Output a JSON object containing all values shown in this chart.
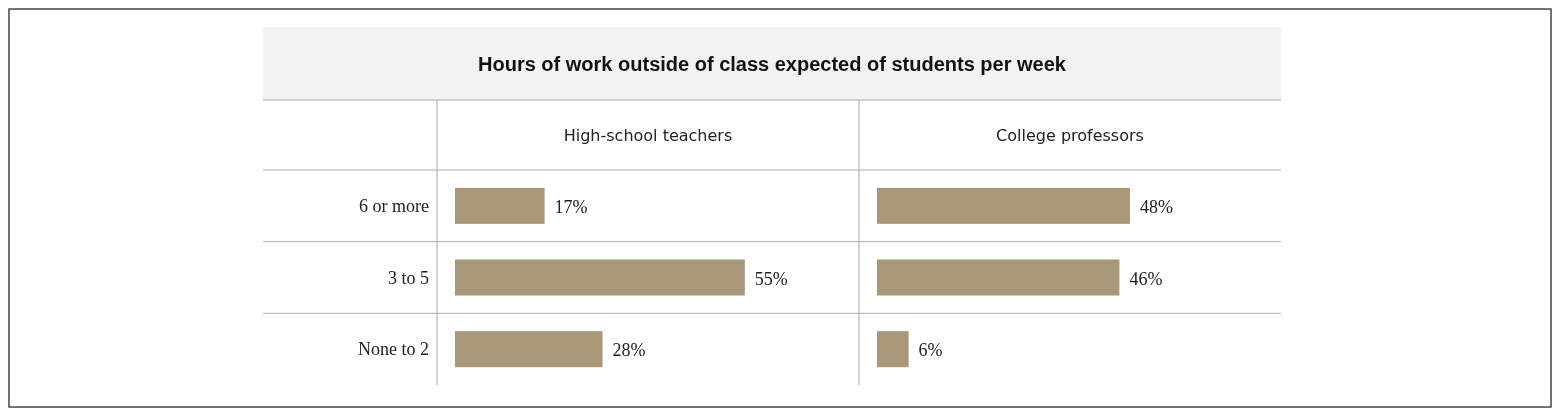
{
  "chart_data": [
    {
      "type": "bar",
      "orientation": "horizontal",
      "title": "Hours of work outside of class expected of students per week",
      "subtitle": "High-school teachers",
      "categories": [
        "6 or more",
        "3 to 5",
        "None to 2"
      ],
      "values": [
        17,
        55,
        28
      ],
      "value_labels": [
        "17%",
        "55%",
        "28%"
      ],
      "color": "#a89779"
    },
    {
      "type": "bar",
      "orientation": "horizontal",
      "subtitle": "College professors",
      "categories": [
        null,
        null,
        null
      ],
      "values": [
        48,
        46,
        6
      ],
      "value_labels": [
        "48%",
        "46%",
        "6%"
      ],
      "color": "#a89779"
    }
  ]
}
